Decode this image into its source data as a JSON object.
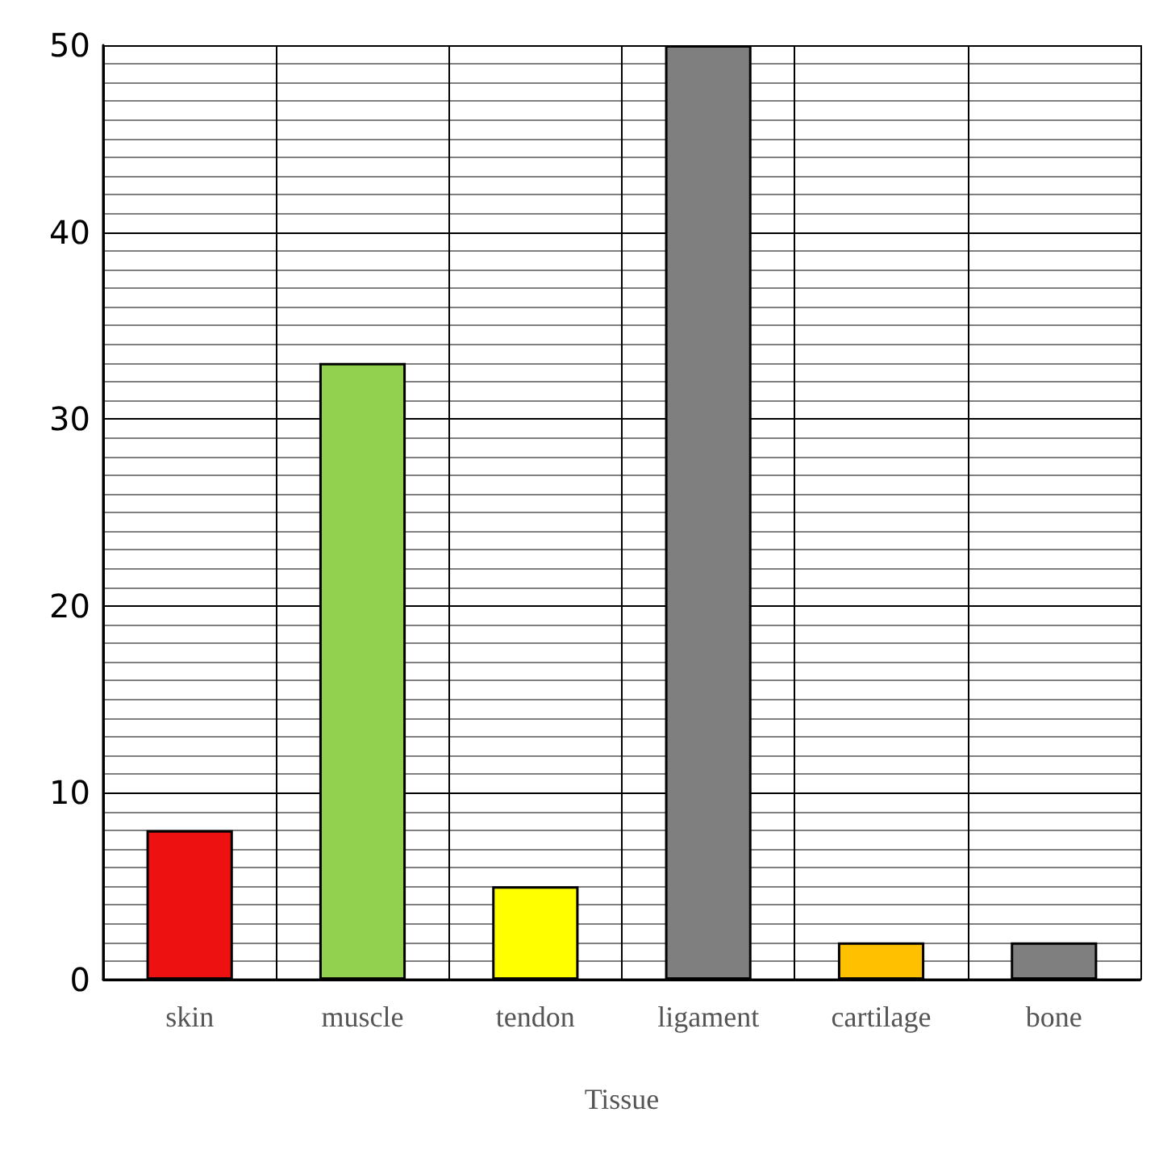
{
  "chart_data": {
    "type": "bar",
    "xlabel": "Tissue",
    "categories": [
      "skin",
      "muscle",
      "tendon",
      "ligament",
      "cartilage",
      "bone"
    ],
    "values": [
      8,
      33,
      5,
      50,
      2,
      2
    ],
    "colors": [
      "#ee1111",
      "#92d050",
      "#ffff00",
      "#7f7f7f",
      "#ffc000",
      "#7f7f7f"
    ],
    "ylim": [
      0,
      50
    ],
    "yticks": [
      0,
      10,
      20,
      30,
      40,
      50
    ],
    "grid": true
  }
}
